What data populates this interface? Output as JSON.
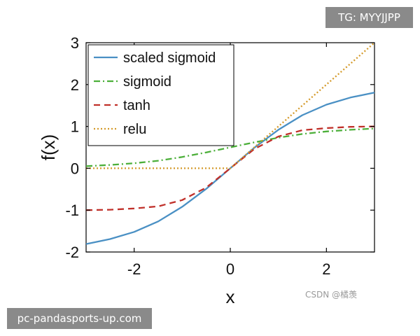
{
  "overlays": {
    "tg_badge": "TG: MYYJJPP",
    "url_badge": "pc-pandasports-up.com",
    "watermark": "CSDN @橘羡"
  },
  "chart_data": {
    "type": "line",
    "title": "",
    "xlabel": "x",
    "ylabel": "f(x)",
    "xlim": [
      -3,
      3
    ],
    "ylim": [
      -2,
      3
    ],
    "xticks": [
      -2,
      0,
      2
    ],
    "yticks": [
      -2,
      -1,
      0,
      1,
      2,
      3
    ],
    "grid": false,
    "legend_position": "top-left",
    "x": [
      -3,
      -2.5,
      -2,
      -1.5,
      -1,
      -0.5,
      0,
      0.5,
      1,
      1.5,
      2,
      2.5,
      3
    ],
    "series": [
      {
        "name": "scaled sigmoid",
        "color": "#4a90c4",
        "dash": "solid",
        "values": [
          -1.81,
          -1.69,
          -1.52,
          -1.27,
          -0.92,
          -0.49,
          0,
          0.49,
          0.92,
          1.27,
          1.52,
          1.69,
          1.81
        ]
      },
      {
        "name": "sigmoid",
        "color": "#4caf3a",
        "dash": "dashdot",
        "values": [
          0.05,
          0.08,
          0.12,
          0.18,
          0.27,
          0.38,
          0.5,
          0.62,
          0.73,
          0.82,
          0.88,
          0.92,
          0.95
        ]
      },
      {
        "name": "tanh",
        "color": "#c0302a",
        "dash": "dashed",
        "values": [
          -1.0,
          -0.99,
          -0.96,
          -0.91,
          -0.76,
          -0.46,
          0,
          0.46,
          0.76,
          0.91,
          0.96,
          0.99,
          1.0
        ]
      },
      {
        "name": "relu",
        "color": "#d49a2a",
        "dash": "dotted",
        "values": [
          0,
          0,
          0,
          0,
          0,
          0,
          0,
          0.5,
          1.0,
          1.5,
          2.0,
          2.5,
          3.0
        ]
      }
    ]
  }
}
